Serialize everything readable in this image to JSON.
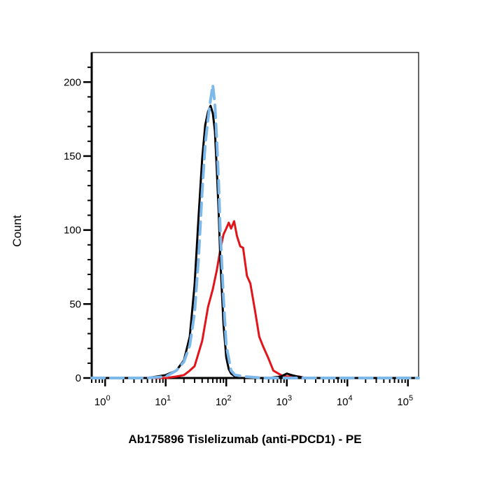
{
  "chart_data": {
    "type": "line",
    "title": "",
    "xlabel": "Ab175896 Tislelizumab (anti-PDCD1) - PE",
    "ylabel": "Count",
    "x_scale": "log",
    "xlim": [
      0.6,
      150000
    ],
    "ylim": [
      0,
      220
    ],
    "x_ticks": [
      {
        "base": "10",
        "exp": "0",
        "value": 1
      },
      {
        "base": "10",
        "exp": "1",
        "value": 10
      },
      {
        "base": "10",
        "exp": "2",
        "value": 100
      },
      {
        "base": "10",
        "exp": "3",
        "value": 1000
      },
      {
        "base": "10",
        "exp": "4",
        "value": 10000
      },
      {
        "base": "10",
        "exp": "5",
        "value": 100000
      }
    ],
    "y_ticks": [
      "0",
      "50",
      "100",
      "150",
      "200"
    ],
    "grid": false,
    "series": [
      {
        "color": "#e3131a",
        "style": "solid",
        "x": [
          0.6,
          5,
          10,
          15,
          20,
          25,
          30,
          40,
          50,
          60,
          70,
          80,
          90,
          100,
          110,
          120,
          135,
          150,
          170,
          190,
          220,
          250,
          300,
          350,
          400,
          500,
          600,
          800,
          1000,
          1300,
          1600,
          2000,
          3000,
          10000,
          150000
        ],
        "y": [
          0,
          0,
          0,
          1,
          2,
          5,
          8,
          25,
          48,
          60,
          73,
          87,
          97,
          101,
          105,
          101,
          106,
          96,
          89,
          88,
          69,
          64,
          45,
          28,
          22,
          13,
          5,
          2,
          1,
          1,
          1,
          0,
          0,
          0,
          0
        ]
      },
      {
        "color": "#000000",
        "style": "solid",
        "x": [
          0.6,
          5,
          10,
          15,
          20,
          25,
          30,
          35,
          40,
          45,
          50,
          55,
          60,
          65,
          70,
          75,
          80,
          90,
          100,
          110,
          120,
          140,
          160,
          200,
          300,
          500,
          800,
          1000,
          1200,
          1500,
          2000,
          10000,
          150000
        ],
        "y": [
          0,
          0,
          2,
          5,
          12,
          28,
          63,
          110,
          148,
          171,
          180,
          184,
          179,
          167,
          140,
          112,
          80,
          36,
          14,
          6,
          3,
          1,
          0,
          0,
          0,
          0,
          1,
          3,
          2,
          1,
          0,
          0,
          0
        ]
      },
      {
        "color": "#7cb8ea",
        "style": "dashed",
        "x": [
          0.6,
          5,
          10,
          15,
          20,
          25,
          30,
          35,
          40,
          45,
          50,
          55,
          60,
          65,
          70,
          75,
          80,
          90,
          100,
          120,
          140,
          200,
          400,
          700,
          1000,
          10000,
          150000
        ],
        "y": [
          0,
          0,
          1,
          5,
          11,
          22,
          44,
          82,
          126,
          158,
          175,
          188,
          198,
          185,
          160,
          132,
          98,
          54,
          22,
          5,
          2,
          1,
          0,
          0,
          0,
          0,
          0
        ]
      }
    ]
  }
}
